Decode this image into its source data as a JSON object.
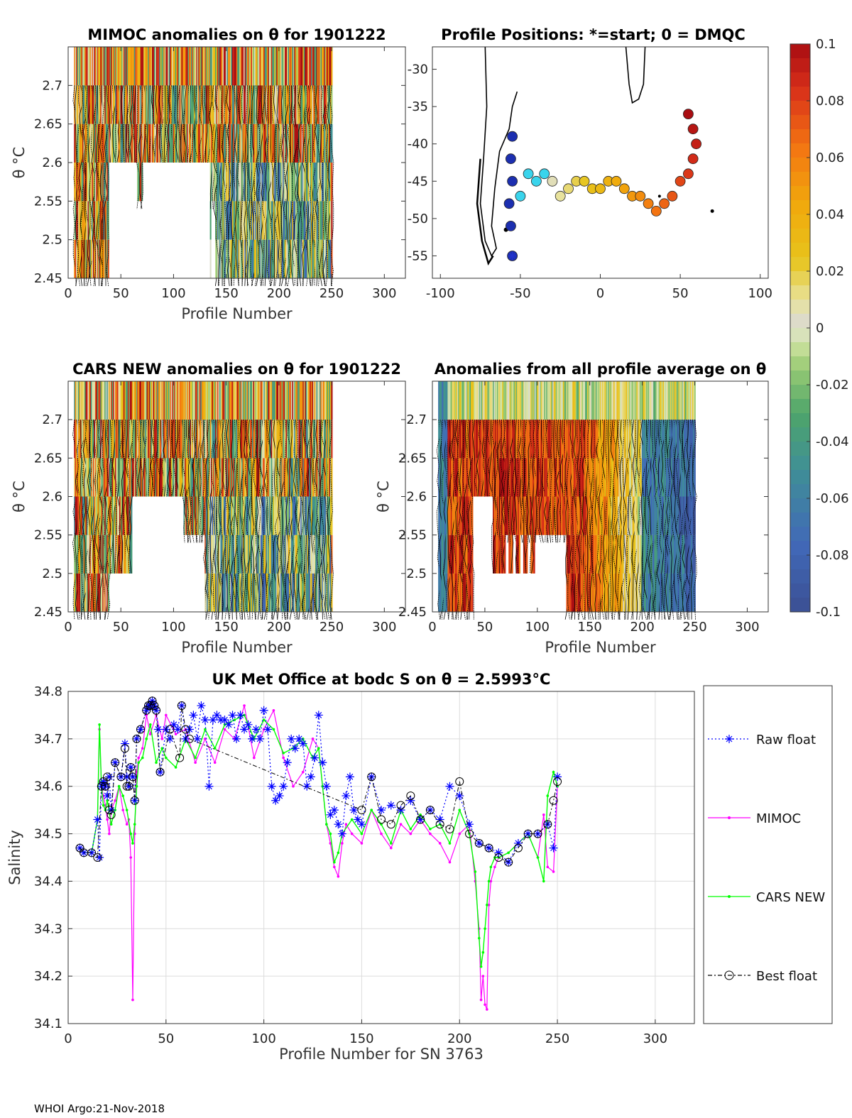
{
  "footer": "WHOI Argo:21-Nov-2018",
  "chart_data": [
    {
      "id": "mimoc",
      "type": "heatmap",
      "title": "MIMOC anomalies on θ  for 1901222",
      "xlabel": "Profile Number",
      "ylabel": "θ °C",
      "xlim": [
        0,
        320
      ],
      "ylim": [
        2.45,
        2.75
      ],
      "xticks": [
        "0",
        "50",
        "100",
        "150",
        "200",
        "250",
        "300"
      ],
      "yticks": [
        "2.45",
        "2.5",
        "2.55",
        "2.6",
        "2.65",
        "2.7"
      ],
      "profiles_range": [
        6,
        250
      ],
      "theta_levels": [
        2.45,
        2.5,
        2.55,
        2.6,
        2.65,
        2.7,
        2.75
      ]
    },
    {
      "id": "positions",
      "type": "scatter",
      "title": "Profile Positions: *=start; 0 = DMQC",
      "xlim": [
        -105,
        105
      ],
      "ylim": [
        -58,
        -27
      ],
      "xticks": [
        "-100",
        "-50",
        "0",
        "50",
        "100"
      ],
      "yticks": [
        "-30",
        "-35",
        "-40",
        "-45",
        "-50",
        "-55"
      ],
      "track": [
        [
          -55,
          -55
        ],
        [
          -56,
          -51
        ],
        [
          -57,
          -48
        ],
        [
          -55,
          -45
        ],
        [
          -56,
          -42
        ],
        [
          -55,
          -39
        ],
        [
          -50,
          -47
        ],
        [
          -45,
          -44
        ],
        [
          -40,
          -45
        ],
        [
          -35,
          -44
        ],
        [
          -30,
          -45
        ],
        [
          -25,
          -47
        ],
        [
          -20,
          -46
        ],
        [
          -15,
          -45
        ],
        [
          -10,
          -45
        ],
        [
          -5,
          -46
        ],
        [
          0,
          -46
        ],
        [
          5,
          -45
        ],
        [
          10,
          -45
        ],
        [
          15,
          -46
        ],
        [
          20,
          -47
        ],
        [
          25,
          -47
        ],
        [
          30,
          -48
        ],
        [
          35,
          -49
        ],
        [
          40,
          -48
        ],
        [
          45,
          -47
        ],
        [
          50,
          -45
        ],
        [
          55,
          -44
        ],
        [
          58,
          -42
        ],
        [
          60,
          -40
        ],
        [
          58,
          -38
        ],
        [
          55,
          -36
        ]
      ]
    },
    {
      "id": "cars",
      "type": "heatmap",
      "title": "CARS NEW anomalies on θ for 1901222",
      "xlabel": "Profile Number",
      "ylabel": "θ °C",
      "xlim": [
        0,
        320
      ],
      "ylim": [
        2.45,
        2.75
      ],
      "xticks": [
        "0",
        "50",
        "100",
        "150",
        "200",
        "250",
        "300"
      ],
      "yticks": [
        "2.45",
        "2.5",
        "2.55",
        "2.6",
        "2.65",
        "2.7"
      ],
      "profiles_range": [
        6,
        250
      ]
    },
    {
      "id": "allavg",
      "type": "heatmap",
      "title": "Anomalies from all profile average on θ",
      "xlabel": "Profile Number",
      "ylabel": "θ °C",
      "xlim": [
        0,
        320
      ],
      "ylim": [
        2.45,
        2.75
      ],
      "xticks": [
        "0",
        "50",
        "100",
        "150",
        "200",
        "250",
        "300"
      ],
      "yticks": [
        "2.45",
        "2.5",
        "2.55",
        "2.6",
        "2.65",
        "2.7"
      ],
      "profiles_range": [
        6,
        250
      ]
    },
    {
      "id": "colorbar",
      "type": "heatmap",
      "range": [
        -0.1,
        0.1
      ],
      "ticks": [
        "0.1",
        "0.08",
        "0.06",
        "0.04",
        "0.02",
        "0",
        "-0.02",
        "-0.04",
        "-0.06",
        "-0.08",
        "-0.1"
      ]
    },
    {
      "id": "salinity",
      "type": "line",
      "title": "UK Met Office at bodc S on θ = 2.5993°C",
      "xlabel": "Profile Number for SN 3763",
      "ylabel": "Salinity",
      "xlim": [
        0,
        320
      ],
      "ylim": [
        34.1,
        34.8
      ],
      "xticks": [
        "0",
        "50",
        "100",
        "150",
        "200",
        "250",
        "300"
      ],
      "yticks": [
        "34.1",
        "34.2",
        "34.3",
        "34.4",
        "34.5",
        "34.6",
        "34.7",
        "34.8"
      ],
      "legend": [
        "Raw float",
        "MIMOC",
        "CARS NEW",
        "Best float"
      ],
      "series": [
        {
          "name": "Raw float",
          "color": "#0000ff",
          "x": [
            6,
            8,
            12,
            15,
            16,
            17,
            18,
            19,
            20,
            21,
            22,
            24,
            27,
            29,
            30,
            31,
            32,
            33,
            34,
            35,
            37,
            40,
            41,
            42,
            43,
            44,
            45,
            46,
            47,
            50,
            52,
            54,
            56,
            58,
            60,
            62,
            64,
            66,
            68,
            70,
            72,
            74,
            76,
            78,
            80,
            82,
            84,
            86,
            88,
            90,
            92,
            94,
            96,
            98,
            100,
            102,
            104,
            106,
            108,
            110,
            112,
            114,
            116,
            118,
            120,
            122,
            124,
            126,
            128,
            130,
            132,
            134,
            136,
            138,
            140,
            142,
            144,
            146,
            148,
            150,
            155,
            160,
            165,
            170,
            175,
            180,
            185,
            190,
            195,
            200,
            205,
            210,
            215,
            220,
            225,
            230,
            235,
            240,
            245,
            248,
            250
          ],
          "y": [
            34.47,
            34.46,
            34.46,
            34.53,
            34.45,
            34.6,
            34.61,
            34.6,
            34.58,
            34.62,
            34.55,
            34.65,
            34.62,
            34.69,
            34.62,
            34.6,
            34.64,
            34.62,
            34.57,
            34.7,
            34.72,
            34.76,
            34.77,
            34.77,
            34.78,
            34.77,
            34.76,
            34.72,
            34.63,
            34.72,
            34.7,
            34.73,
            34.72,
            34.77,
            34.7,
            34.72,
            34.75,
            34.7,
            34.77,
            34.74,
            34.6,
            34.74,
            34.75,
            34.74,
            34.74,
            34.73,
            34.75,
            34.7,
            34.75,
            34.72,
            34.73,
            34.7,
            34.72,
            34.7,
            34.76,
            34.72,
            34.6,
            34.57,
            34.58,
            34.6,
            34.65,
            34.7,
            34.68,
            34.7,
            34.69,
            34.6,
            34.62,
            34.66,
            34.75,
            34.65,
            34.6,
            34.54,
            34.55,
            34.52,
            34.5,
            34.58,
            34.62,
            34.55,
            34.53,
            34.52,
            34.62,
            34.55,
            34.56,
            34.55,
            34.57,
            34.53,
            34.55,
            34.53,
            34.6,
            34.58,
            34.52,
            34.48,
            34.47,
            34.46,
            34.44,
            34.48,
            34.5,
            34.5,
            34.52,
            34.47,
            34.62
          ]
        },
        {
          "name": "MIMOC",
          "color": "#ff00ff",
          "x": [
            6,
            8,
            12,
            15,
            16,
            17,
            18,
            19,
            20,
            21,
            22,
            24,
            26,
            28,
            30,
            31,
            32,
            33,
            34,
            35,
            36,
            38,
            40,
            42,
            45,
            48,
            50,
            55,
            60,
            65,
            70,
            75,
            80,
            85,
            90,
            95,
            100,
            105,
            110,
            115,
            120,
            125,
            128,
            130,
            132,
            134,
            136,
            138,
            140,
            142,
            145,
            150,
            155,
            160,
            165,
            170,
            175,
            180,
            185,
            190,
            195,
            200,
            205,
            208,
            210,
            211,
            212,
            213,
            214,
            215,
            216,
            218,
            220,
            225,
            230,
            235,
            240,
            243,
            245,
            248,
            250
          ],
          "y": [
            34.47,
            34.46,
            34.46,
            34.53,
            34.72,
            34.6,
            34.58,
            34.56,
            34.53,
            34.5,
            34.55,
            34.57,
            34.6,
            34.55,
            34.52,
            34.53,
            34.45,
            34.15,
            34.5,
            34.63,
            34.66,
            34.68,
            34.75,
            34.71,
            34.75,
            34.7,
            34.75,
            34.71,
            34.72,
            34.65,
            34.7,
            34.65,
            34.72,
            34.7,
            34.77,
            34.66,
            34.72,
            34.76,
            34.66,
            34.6,
            34.63,
            34.7,
            34.68,
            34.6,
            34.52,
            34.48,
            34.43,
            34.41,
            34.48,
            34.52,
            34.5,
            34.48,
            34.55,
            34.5,
            34.47,
            34.52,
            34.5,
            34.53,
            34.5,
            34.48,
            34.44,
            34.5,
            34.52,
            34.4,
            34.3,
            34.15,
            34.2,
            34.14,
            34.13,
            34.35,
            34.4,
            34.43,
            34.45,
            34.46,
            34.48,
            34.5,
            34.45,
            34.54,
            34.43,
            34.42,
            34.6
          ]
        },
        {
          "name": "CARS NEW",
          "color": "#00ff00",
          "x": [
            6,
            8,
            12,
            15,
            16,
            17,
            18,
            19,
            20,
            22,
            24,
            26,
            28,
            30,
            32,
            33,
            34,
            35,
            36,
            38,
            40,
            42,
            45,
            48,
            50,
            55,
            60,
            65,
            70,
            75,
            80,
            85,
            90,
            95,
            100,
            105,
            110,
            115,
            120,
            125,
            128,
            130,
            132,
            134,
            136,
            138,
            140,
            145,
            150,
            155,
            160,
            165,
            170,
            175,
            180,
            185,
            190,
            195,
            200,
            205,
            208,
            210,
            211,
            212,
            213,
            214,
            215,
            216,
            218,
            220,
            225,
            230,
            235,
            240,
            243,
            245,
            248,
            250
          ],
          "y": [
            34.47,
            34.46,
            34.46,
            34.53,
            34.73,
            34.6,
            34.56,
            34.55,
            34.57,
            34.52,
            34.55,
            34.6,
            34.58,
            34.55,
            34.5,
            34.48,
            34.52,
            34.6,
            34.65,
            34.66,
            34.7,
            34.73,
            34.65,
            34.68,
            34.66,
            34.64,
            34.7,
            34.66,
            34.72,
            34.68,
            34.73,
            34.74,
            34.75,
            34.7,
            34.74,
            34.72,
            34.67,
            34.68,
            34.7,
            34.66,
            34.68,
            34.6,
            34.52,
            34.5,
            34.44,
            34.46,
            34.5,
            34.53,
            34.5,
            34.55,
            34.52,
            34.48,
            34.55,
            34.51,
            34.54,
            34.51,
            34.52,
            34.48,
            34.55,
            34.5,
            34.42,
            34.28,
            34.22,
            34.25,
            34.3,
            34.35,
            34.4,
            34.43,
            34.45,
            34.45,
            34.46,
            34.48,
            34.5,
            34.45,
            34.4,
            34.58,
            34.63,
            34.6
          ]
        },
        {
          "name": "Best float",
          "color": "#000000",
          "x": [
            6,
            8,
            12,
            15,
            17,
            18,
            19,
            20,
            21,
            22,
            24,
            27,
            29,
            30,
            31,
            32,
            33,
            34,
            35,
            37,
            40,
            41,
            42,
            43,
            44,
            45,
            47,
            52,
            57,
            58,
            60,
            62,
            150,
            155,
            160,
            165,
            170,
            175,
            180,
            185,
            190,
            195,
            200,
            205,
            210,
            215,
            220,
            225,
            230,
            235,
            240,
            245,
            248,
            250
          ],
          "y": [
            34.47,
            34.46,
            34.46,
            34.45,
            34.6,
            34.61,
            34.6,
            34.62,
            34.55,
            34.54,
            34.65,
            34.62,
            34.68,
            34.6,
            34.6,
            34.64,
            34.62,
            34.57,
            34.7,
            34.72,
            34.76,
            34.77,
            34.77,
            34.78,
            34.77,
            34.76,
            34.63,
            34.72,
            34.66,
            34.77,
            34.72,
            34.7,
            34.55,
            34.62,
            34.53,
            34.52,
            34.56,
            34.58,
            34.53,
            34.55,
            34.52,
            34.51,
            34.61,
            34.5,
            34.48,
            34.47,
            34.45,
            34.44,
            34.47,
            34.5,
            34.5,
            34.52,
            34.57,
            34.61
          ]
        }
      ]
    }
  ]
}
